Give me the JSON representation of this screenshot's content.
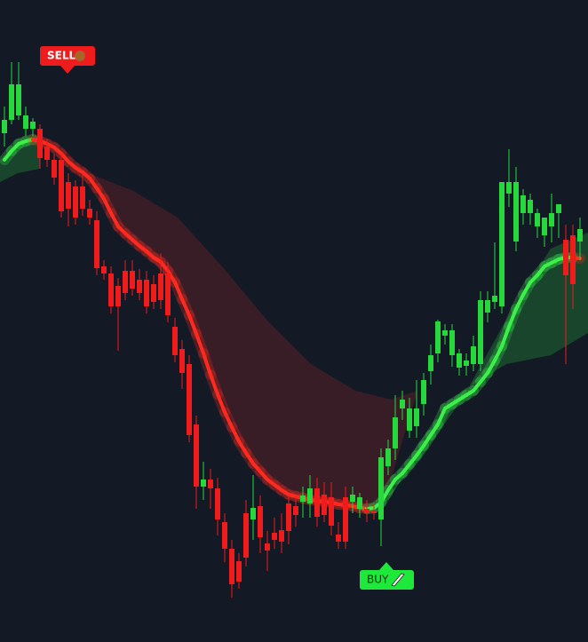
{
  "chart_data": {
    "type": "candlestick",
    "ylim": [
      0,
      723
    ],
    "up_color": "#27d83c",
    "down_color": "#f01b1b",
    "candles": [
      [
        573,
        603,
        558,
        588
      ],
      [
        588,
        653,
        583,
        628
      ],
      [
        593,
        653,
        588,
        628
      ],
      [
        578,
        603,
        570,
        593
      ],
      [
        578,
        590,
        570,
        586
      ],
      [
        578,
        583,
        533,
        545
      ],
      [
        558,
        566,
        535,
        543
      ],
      [
        543,
        550,
        515,
        523
      ],
      [
        543,
        550,
        478,
        485
      ],
      [
        518,
        528,
        468,
        488
      ],
      [
        513,
        520,
        470,
        478
      ],
      [
        513,
        528,
        480,
        488
      ],
      [
        488,
        498,
        470,
        478
      ],
      [
        475,
        485,
        413,
        421
      ],
      [
        423,
        430,
        408,
        415
      ],
      [
        415,
        423,
        370,
        378
      ],
      [
        401,
        410,
        328,
        378
      ],
      [
        418,
        430,
        385,
        393
      ],
      [
        418,
        430,
        390,
        398
      ],
      [
        408,
        420,
        385,
        393
      ],
      [
        408,
        418,
        370,
        378
      ],
      [
        403,
        413,
        375,
        383
      ],
      [
        415,
        438,
        375,
        385
      ],
      [
        415,
        428,
        360,
        368
      ],
      [
        355,
        365,
        315,
        323
      ],
      [
        330,
        340,
        285,
        303
      ],
      [
        313,
        323,
        225,
        233
      ],
      [
        245,
        255,
        150,
        175
      ],
      [
        175,
        203,
        160,
        183
      ],
      [
        183,
        195,
        150,
        173
      ],
      [
        173,
        185,
        120,
        138
      ],
      [
        135,
        145,
        90,
        105
      ],
      [
        105,
        115,
        50,
        65
      ],
      [
        91,
        100,
        60,
        68
      ],
      [
        145,
        160,
        85,
        95
      ],
      [
        138,
        188,
        115,
        151
      ],
      [
        153,
        165,
        100,
        118
      ],
      [
        111,
        125,
        80,
        103
      ],
      [
        123,
        140,
        105,
        115
      ],
      [
        126,
        145,
        100,
        113
      ],
      [
        156,
        165,
        110,
        125
      ],
      [
        153,
        165,
        130,
        143
      ],
      [
        158,
        175,
        140,
        165
      ],
      [
        156,
        188,
        140,
        173
      ],
      [
        173,
        185,
        130,
        141
      ],
      [
        166,
        180,
        135,
        143
      ],
      [
        163,
        180,
        120,
        131
      ],
      [
        121,
        135,
        105,
        113
      ],
      [
        163,
        175,
        105,
        113
      ],
      [
        158,
        175,
        145,
        166
      ],
      [
        150,
        168,
        140,
        163
      ],
      [
        150,
        160,
        135,
        145
      ],
      [
        148,
        155,
        138,
        145
      ],
      [
        138,
        218,
        108,
        208
      ],
      [
        198,
        228,
        188,
        218
      ],
      [
        218,
        278,
        205,
        253
      ],
      [
        263,
        283,
        250,
        273
      ],
      [
        238,
        275,
        230,
        263
      ],
      [
        243,
        295,
        230,
        263
      ],
      [
        268,
        303,
        255,
        295
      ],
      [
        305,
        335,
        290,
        323
      ],
      [
        325,
        363,
        315,
        361
      ],
      [
        345,
        358,
        335,
        351
      ],
      [
        323,
        358,
        310,
        351
      ],
      [
        309,
        330,
        300,
        325
      ],
      [
        311,
        325,
        300,
        317
      ],
      [
        313,
        345,
        305,
        333
      ],
      [
        313,
        395,
        305,
        385
      ],
      [
        371,
        395,
        360,
        385
      ],
      [
        383,
        450,
        375,
        390
      ],
      [
        378,
        518,
        370,
        518
      ],
      [
        505,
        555,
        490,
        518
      ],
      [
        451,
        535,
        440,
        518
      ],
      [
        483,
        510,
        470,
        503
      ],
      [
        483,
        505,
        470,
        498
      ],
      [
        468,
        488,
        455,
        483
      ],
      [
        458,
        478,
        445,
        478
      ],
      [
        468,
        505,
        450,
        483
      ],
      [
        483,
        493,
        455,
        493
      ],
      [
        453,
        470,
        313,
        413
      ],
      [
        458,
        470,
        375,
        403
      ],
      [
        451,
        478,
        430,
        465
      ]
    ],
    "ma": {
      "up_color": "#3cf04a",
      "down_color": "#ff2a1f",
      "values": [
        543,
        553,
        561,
        564,
        566,
        564,
        561,
        557,
        550,
        541,
        534,
        529,
        522,
        511,
        499,
        483,
        468,
        460,
        453,
        446,
        440,
        433,
        428,
        418,
        405,
        386,
        368,
        347,
        325,
        301,
        279,
        259,
        242,
        226,
        213,
        201,
        192,
        183,
        177,
        171,
        166,
        164,
        162,
        160,
        159,
        158,
        157,
        155,
        154,
        153,
        151,
        150,
        151,
        157,
        171,
        183,
        190,
        200,
        210,
        221,
        233,
        245,
        263,
        268,
        273,
        278,
        283,
        293,
        303,
        317,
        333,
        355,
        375,
        391,
        405,
        413,
        423,
        427,
        431,
        433,
        433,
        432
      ]
    },
    "annotations": [
      "SELL",
      "BUY"
    ]
  }
}
